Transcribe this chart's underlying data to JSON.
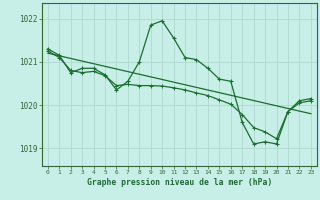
{
  "background_color": "#c8eee8",
  "grid_color": "#b0ddd0",
  "line_color": "#1a6e2e",
  "title": "Graphe pression niveau de la mer (hPa)",
  "ylabel_ticks": [
    1019,
    1020,
    1021,
    1022
  ],
  "xlim": [
    -0.5,
    23.5
  ],
  "ylim": [
    1018.6,
    1022.35
  ],
  "series_main": {
    "x": [
      0,
      1,
      2,
      3,
      4,
      5,
      6,
      7,
      8,
      9,
      10,
      11,
      12,
      13,
      14,
      15,
      16,
      17,
      18,
      19,
      20,
      21,
      22,
      23
    ],
    "y": [
      1021.3,
      1021.15,
      1020.75,
      1020.85,
      1020.85,
      1020.7,
      1020.35,
      1020.55,
      1021.0,
      1021.85,
      1021.95,
      1021.55,
      1021.1,
      1021.05,
      1020.85,
      1020.6,
      1020.55,
      1019.6,
      1019.1,
      1019.15,
      1019.1,
      1019.85,
      1020.1,
      1020.15
    ]
  },
  "series_trend1": {
    "x": [
      0,
      1,
      2,
      3,
      4,
      5,
      6,
      7,
      8,
      9,
      10,
      11,
      12,
      13,
      14,
      15,
      16,
      17,
      18,
      19,
      20,
      21,
      22,
      23
    ],
    "y": [
      1021.25,
      1021.1,
      1020.8,
      1020.75,
      1020.78,
      1020.68,
      1020.45,
      1020.48,
      1020.45,
      1020.45,
      1020.44,
      1020.4,
      1020.35,
      1020.28,
      1020.22,
      1020.12,
      1020.02,
      1019.78,
      1019.48,
      1019.38,
      1019.22,
      1019.85,
      1020.05,
      1020.1
    ]
  },
  "series_trend2": {
    "x": [
      0,
      23
    ],
    "y": [
      1021.2,
      1019.8
    ]
  },
  "series_zigzag": {
    "x": [
      0,
      1,
      2,
      3,
      4,
      5,
      6,
      7,
      8,
      9,
      10,
      11,
      12,
      13,
      14,
      15,
      16,
      17,
      18,
      19,
      20,
      21,
      22,
      23
    ],
    "y": [
      1021.3,
      1021.15,
      1020.75,
      1020.8,
      1020.85,
      1020.72,
      1020.28,
      1020.55,
      1021.0,
      1021.85,
      1021.95,
      1021.55,
      1021.1,
      1021.05,
      1020.85,
      1020.6,
      1020.55,
      1019.6,
      1019.05,
      1019.15,
      1019.1,
      1019.85,
      1020.1,
      1020.15
    ]
  },
  "xtick_labels": [
    "0",
    "1",
    "2",
    "3",
    "4",
    "5",
    "6",
    "7",
    "8",
    "9",
    "10",
    "11",
    "12",
    "13",
    "14",
    "15",
    "16",
    "17",
    "18",
    "19",
    "20",
    "21",
    "22",
    "23"
  ]
}
